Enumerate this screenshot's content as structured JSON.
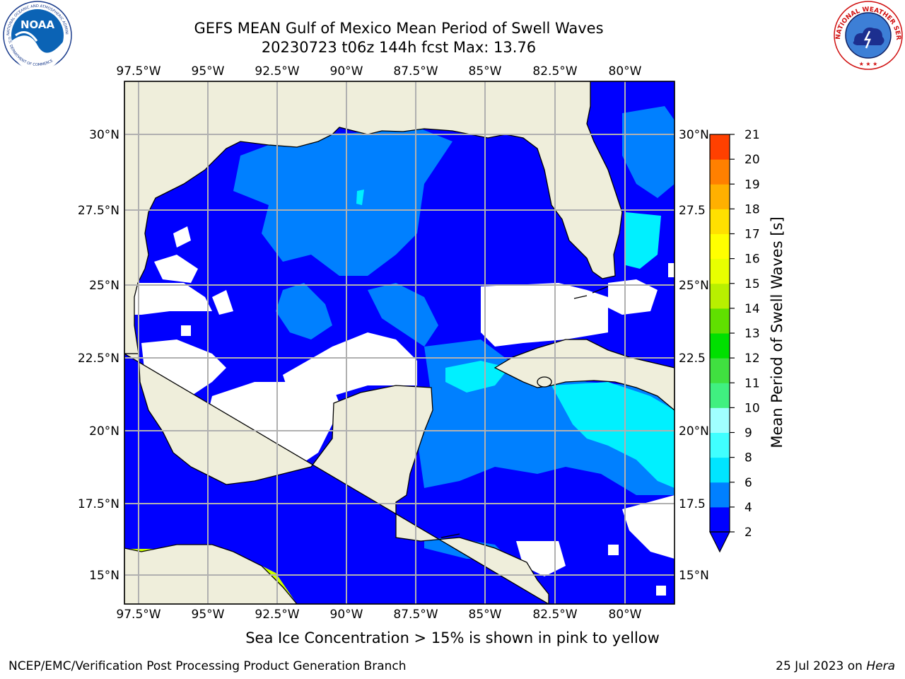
{
  "title_line1": "GEFS MEAN Gulf of Mexico Mean Period of Swell Waves",
  "title_line2": "20230723 t06z 144h fcst   Max: 13.76",
  "colorbar_label": "Mean Period of Swell Waves [s]",
  "note": "Sea Ice Concentration > 15% is shown in pink to yellow",
  "footer_left": "NCEP/EMC/Verification Post Processing Product Generation Branch",
  "footer_date": "25 Jul 2023 on ",
  "footer_machine": "Hera",
  "logos": {
    "noaa_text": "NOAA",
    "noaa_ring_text": "NATIONAL OCEANIC AND ATMOSPHERIC ADMINISTRATION",
    "noaa_ring_bottom": "U.S. DEPARTMENT OF COMMERCE",
    "nws_ring_text": "NATIONAL WEATHER SERVICE"
  },
  "map": {
    "lon_ticks": [
      "97.5°W",
      "95°W",
      "92.5°W",
      "90°W",
      "87.5°W",
      "85°W",
      "82.5°W",
      "80°W"
    ],
    "lat_ticks_left": [
      "30°N",
      "27.5°N",
      "25°N",
      "22.5°N",
      "20°N",
      "17.5°N",
      "15°N"
    ],
    "lat_ticks_right": [
      "30°N",
      "27.5",
      "25°N",
      "22.5",
      "20°N",
      "17.5",
      "15°N"
    ],
    "colors": {
      "land": "#efeedb",
      "no_data": "#ffffff",
      "grid": "#b0b0b0"
    }
  },
  "colorbar": {
    "levels": [
      "2",
      "4",
      "6",
      "8",
      "9",
      "10",
      "11",
      "12",
      "13",
      "14",
      "15",
      "16",
      "17",
      "18",
      "19",
      "20",
      "21"
    ],
    "colors": [
      "#0000ff",
      "#0080ff",
      "#00e5ff",
      "#40ffff",
      "#a0ffff",
      "#40f080",
      "#40e040",
      "#00e000",
      "#60e000",
      "#b8f000",
      "#e8ff00",
      "#ffff00",
      "#ffe000",
      "#ffb000",
      "#ff8000",
      "#ff4000",
      "#ff0000"
    ],
    "under_color": "#0000ff"
  }
}
